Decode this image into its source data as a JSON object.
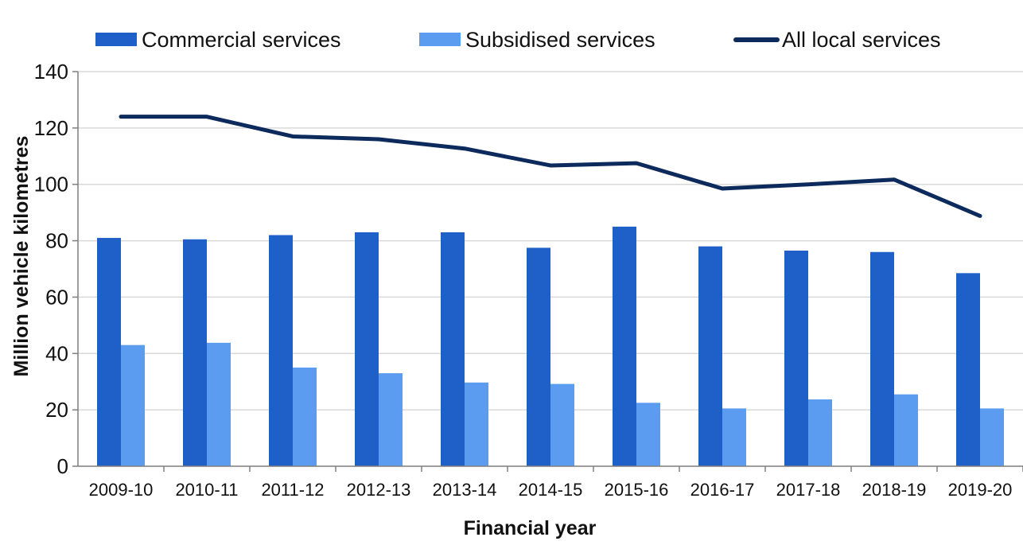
{
  "chart_data": {
    "type": "bar",
    "categories": [
      "2009-10",
      "2010-11",
      "2011-12",
      "2012-13",
      "2013-14",
      "2014-15",
      "2015-16",
      "2016-17",
      "2017-18",
      "2018-19",
      "2019-20"
    ],
    "series": [
      {
        "name": "Commercial services",
        "kind": "bar",
        "color": "#1f5fc8",
        "values": [
          81,
          80.5,
          82,
          83,
          83,
          77.5,
          85,
          78,
          76.5,
          76,
          68.5
        ]
      },
      {
        "name": "Subsidised services",
        "kind": "bar",
        "color": "#5b9cf0",
        "values": [
          43,
          43.8,
          35,
          33,
          29.7,
          29.2,
          22.5,
          20.5,
          23.7,
          25.5,
          20.5
        ]
      },
      {
        "name": "All local services",
        "kind": "line",
        "color": "#0d2a5c",
        "values": [
          124,
          124,
          117,
          116,
          112.7,
          106.7,
          107.5,
          98.5,
          100,
          101.7,
          88.8
        ]
      }
    ],
    "xlabel": "Financial year",
    "ylabel": "Million vehicle kilometres",
    "ylim": [
      0,
      140
    ],
    "yticks": [
      0,
      20,
      40,
      60,
      80,
      100,
      120,
      140
    ],
    "grid": true,
    "legend_position": "top"
  }
}
